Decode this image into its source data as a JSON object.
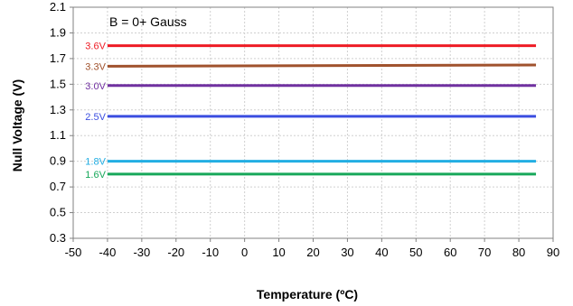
{
  "chart_data": {
    "type": "line",
    "annotation": "B = 0+ Gauss",
    "xlabel": "Temperature (ºC)",
    "ylabel": "Null Voltage (V)",
    "xlim": [
      -50,
      90
    ],
    "ylim": [
      0.3,
      2.1
    ],
    "xticks": [
      -50,
      -40,
      -30,
      -20,
      -10,
      0,
      10,
      20,
      30,
      40,
      50,
      60,
      70,
      80,
      90
    ],
    "yticks": [
      0.3,
      0.5,
      0.7,
      0.9,
      1.1,
      1.3,
      1.5,
      1.7,
      1.9,
      2.1
    ],
    "xtick_labels": [
      "-50",
      "-40",
      "-30",
      "-20",
      "-10",
      "0",
      "10",
      "20",
      "30",
      "40",
      "50",
      "60",
      "70",
      "80",
      "90"
    ],
    "ytick_labels": [
      "0.3",
      "0.5",
      "0.7",
      "0.9",
      "1.1",
      "1.3",
      "1.5",
      "1.7",
      "1.9",
      "2.1"
    ],
    "grid": true,
    "x": [
      -40,
      85
    ],
    "series": [
      {
        "name": "3.6V",
        "color": "#ee1c25",
        "values": [
          1.8,
          1.8
        ]
      },
      {
        "name": "3.3V",
        "color": "#a0522d",
        "values": [
          1.64,
          1.65
        ]
      },
      {
        "name": "3.0V",
        "color": "#7030a0",
        "values": [
          1.49,
          1.49
        ]
      },
      {
        "name": "2.5V",
        "color": "#3b4ee0",
        "values": [
          1.25,
          1.25
        ]
      },
      {
        "name": "1.8V",
        "color": "#22aee3",
        "values": [
          0.9,
          0.9
        ]
      },
      {
        "name": "1.6V",
        "color": "#17a85a",
        "values": [
          0.8,
          0.8
        ]
      }
    ]
  }
}
